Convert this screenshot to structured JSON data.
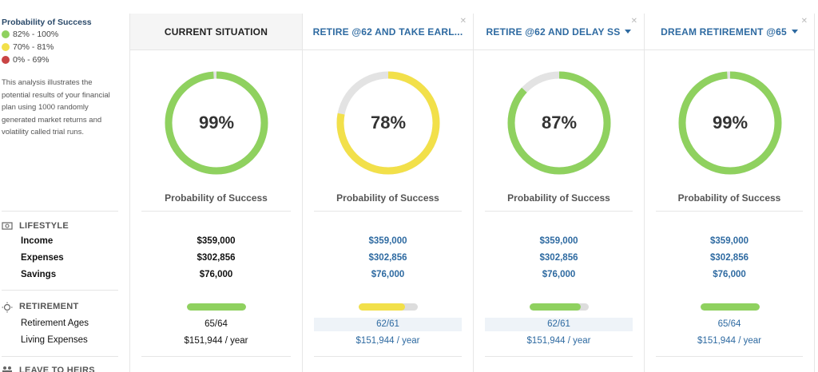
{
  "legend": {
    "title": "Probability of Success",
    "items": [
      {
        "label": "82% - 100%",
        "color": "#8fd15f"
      },
      {
        "label": "70% - 81%",
        "color": "#f2e04a"
      },
      {
        "label": "0% - 69%",
        "color": "#c94444"
      }
    ]
  },
  "description": "This analysis illustrates the potential results of your financial plan using 1000 randomly generated market returns and volatility called trial runs.",
  "sections": {
    "lifestyle": {
      "title": "LIFESTYLE",
      "rows": [
        "Income",
        "Expenses",
        "Savings"
      ],
      "icon": "money-icon"
    },
    "retirement": {
      "title": "RETIREMENT",
      "rows": [
        "Retirement Ages",
        "Living Expenses"
      ],
      "icon": "sun-icon"
    },
    "heirs": {
      "title": "LEAVE TO HEIRS",
      "icon": "people-icon"
    }
  },
  "success_label": "Probability of Success",
  "columns": [
    {
      "title": "CURRENT SITUATION",
      "percent": "99%",
      "probability": 0.99,
      "color": "#8fd15f",
      "income": "$359,000",
      "expenses": "$302,856",
      "savings": "$76,000",
      "retirement_ages": "65/64",
      "living_expenses": "$151,944 / year",
      "bar_fraction": 1.0
    },
    {
      "title": "RETIRE @62 AND TAKE EARL...",
      "percent": "78%",
      "probability": 0.78,
      "color": "#f2e04a",
      "income": "$359,000",
      "expenses": "$302,856",
      "savings": "$76,000",
      "retirement_ages": "62/61",
      "living_expenses": "$151,944 / year",
      "bar_fraction": 0.78
    },
    {
      "title": "RETIRE @62 AND DELAY SS",
      "percent": "87%",
      "probability": 0.87,
      "color": "#8fd15f",
      "income": "$359,000",
      "expenses": "$302,856",
      "savings": "$76,000",
      "retirement_ages": "62/61",
      "living_expenses": "$151,944 / year",
      "bar_fraction": 0.87
    },
    {
      "title": "DREAM RETIREMENT @65",
      "percent": "99%",
      "probability": 0.99,
      "color": "#8fd15f",
      "income": "$359,000",
      "expenses": "$302,856",
      "savings": "$76,000",
      "retirement_ages": "65/64",
      "living_expenses": "$151,944 / year",
      "bar_fraction": 1.0
    }
  ]
}
